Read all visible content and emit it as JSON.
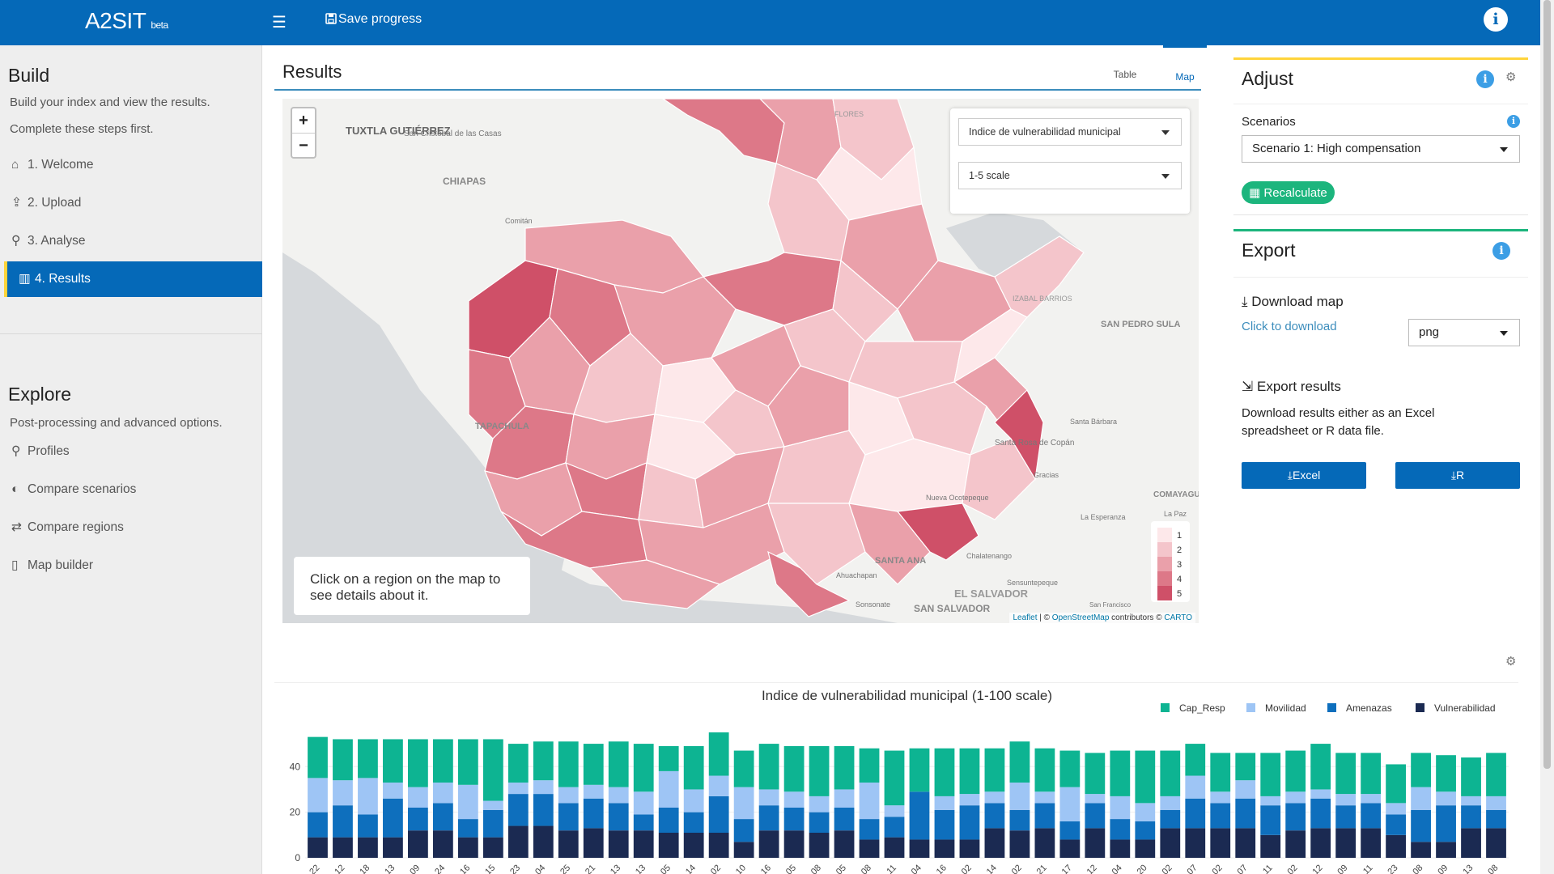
{
  "app": {
    "name": "A2SIT",
    "tag": "beta",
    "save_label": "Save progress"
  },
  "sidebar": {
    "build_title": "Build",
    "build_sub1": "Build your index and view the results.",
    "build_sub2": "Complete these steps first.",
    "build_items": [
      {
        "label": "1. Welcome",
        "icon": "home-icon"
      },
      {
        "label": "2. Upload",
        "icon": "upload-icon"
      },
      {
        "label": "3. Analyse",
        "icon": "search-icon"
      },
      {
        "label": "4. Results",
        "icon": "chart-icon",
        "active": true
      }
    ],
    "explore_title": "Explore",
    "explore_sub": "Post-processing and advanced options.",
    "explore_items": [
      {
        "label": "Profiles",
        "icon": "map-marker-icon"
      },
      {
        "label": "Compare scenarios",
        "icon": "half-circle-icon"
      },
      {
        "label": "Compare regions",
        "icon": "exchange-icon"
      },
      {
        "label": "Map builder",
        "icon": "map-icon"
      }
    ]
  },
  "results": {
    "title": "Results",
    "tabs": [
      "Table",
      "Map"
    ],
    "active_tab": "Map",
    "indicator_select": "Indice de vulnerabilidad municipal",
    "scale_select": "1-5 scale",
    "info_text": "Click on a region on the map to see details about it.",
    "legend": [
      "1",
      "2",
      "3",
      "4",
      "5"
    ],
    "legend_colors": [
      "#fde8ea",
      "#f4c5cb",
      "#eaa0aa",
      "#dd7888",
      "#cf5068"
    ],
    "attribution_leaflet": "Leaflet",
    "attribution_mid": " | © ",
    "attribution_osm": "OpenStreetMap",
    "attribution_contrib": " contributors © ",
    "attribution_carto": "CARTO",
    "place_labels": [
      "TUXTLA GUTIÉRREZ",
      "San Cristóbal de las Casas",
      "CHIAPAS",
      "Comitán",
      "TAPACHULA",
      "SAN PEDRO SULA",
      "Santa Bárbara",
      "Santa Rosa de Copán",
      "Gracias",
      "COMAYAGUA",
      "La Esperanza",
      "La Paz",
      "SANTA ANA",
      "Ahuachapan",
      "Chalatenango",
      "Sensuntepeque",
      "EL SALVADOR",
      "SAN SALVADOR",
      "Sonsonate",
      "San Francisco",
      "Nueva Ocotepeque",
      "IZABAL BARRIOS",
      "FLORES"
    ]
  },
  "adjust": {
    "title": "Adjust",
    "scenarios_label": "Scenarios",
    "scenario_value": "Scenario 1: High compensation",
    "recalc_label": "Recalculate"
  },
  "export": {
    "title": "Export",
    "download_map_label": "Download map",
    "click_to_download": "Click to download",
    "format_value": "png",
    "export_results_label": "Export results",
    "export_desc": "Download results either as an Excel spreadsheet or R data file.",
    "excel_label": "Excel",
    "r_label": "R"
  },
  "colors": {
    "accent": "#0569b8",
    "green": "#1cb57d",
    "adjust_border": "#ffd43b",
    "export_border": "#1cb57d"
  },
  "chart_data": {
    "type": "bar",
    "title": "Indice de vulnerabilidad municipal (1-100 scale)",
    "ylim": [
      0,
      55
    ],
    "yticks": [
      0,
      20,
      40
    ],
    "legend_position": "top-right",
    "categories": [
      "22",
      "12",
      "18",
      "13",
      "09",
      "24",
      "16",
      "15",
      "23",
      "04",
      "25",
      "21",
      "13",
      "13",
      "05",
      "14",
      "02",
      "10",
      "16",
      "05",
      "08",
      "05",
      "08",
      "11",
      "04",
      "16",
      "02",
      "14",
      "02",
      "21",
      "17",
      "12",
      "04",
      "20",
      "02",
      "07",
      "02",
      "07",
      "11",
      "02",
      "12",
      "09",
      "11",
      "23",
      "08",
      "09",
      "13",
      "08"
    ],
    "series": [
      {
        "name": "Vulnerabilidad",
        "color": "#1b2a52",
        "values": [
          9,
          9,
          9,
          9,
          12,
          12,
          9,
          9,
          14,
          14,
          12,
          13,
          12,
          12,
          11,
          11,
          11,
          7,
          12,
          12,
          11,
          12,
          8,
          9,
          8,
          8,
          8,
          13,
          12,
          13,
          8,
          13,
          8,
          8,
          13,
          13,
          13,
          13,
          10,
          12,
          13,
          13,
          13,
          10,
          7,
          7,
          13,
          13
        ]
      },
      {
        "name": "Amenazas",
        "color": "#0e6fbd",
        "values": [
          11,
          14,
          10,
          17,
          10,
          12,
          8,
          12,
          14,
          14,
          12,
          13,
          12,
          7,
          11,
          9,
          16,
          10,
          11,
          10,
          9,
          10,
          9,
          9,
          21,
          13,
          15,
          11,
          9,
          11,
          8,
          11,
          9,
          8,
          8,
          13,
          11,
          13,
          13,
          12,
          13,
          10,
          11,
          9,
          14,
          16,
          10,
          8
        ]
      },
      {
        "name": "Movilidad",
        "color": "#9ec5f5",
        "values": [
          15,
          11,
          16,
          7,
          9,
          9,
          15,
          4,
          5,
          6,
          7,
          6,
          7,
          10,
          16,
          10,
          9,
          14,
          7,
          7,
          7,
          8,
          16,
          5,
          0,
          6,
          5,
          5,
          12,
          5,
          15,
          4,
          10,
          8,
          6,
          10,
          5,
          8,
          4,
          5,
          4,
          5,
          4,
          5,
          10,
          6,
          4,
          6
        ]
      },
      {
        "name": "Cap_Resp",
        "color": "#0db492",
        "values": [
          18,
          18,
          17,
          19,
          21,
          19,
          20,
          27,
          17,
          17,
          20,
          18,
          20,
          21,
          11,
          19,
          19,
          16,
          20,
          20,
          22,
          19,
          15,
          24,
          19,
          21,
          20,
          19,
          18,
          19,
          16,
          18,
          20,
          23,
          20,
          14,
          17,
          12,
          19,
          18,
          20,
          18,
          18,
          17,
          15,
          16,
          17,
          19
        ]
      }
    ]
  }
}
